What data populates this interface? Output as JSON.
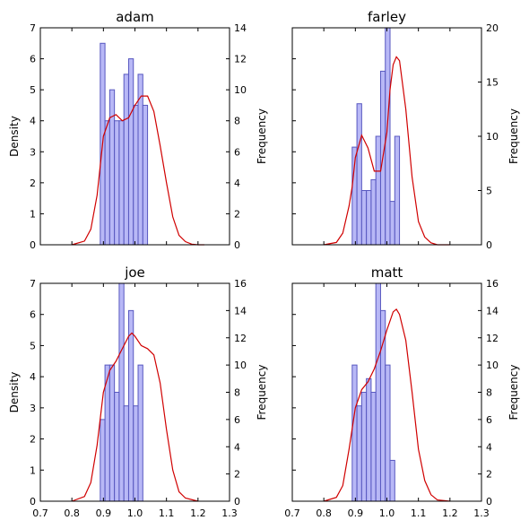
{
  "colors": {
    "bar_fill": "#b0b0f5",
    "bar_stroke": "#5858c0",
    "kde": "#d00000",
    "axis": "#000000"
  },
  "chart_data": [
    {
      "type": "bar",
      "title": "adam",
      "bin_start": 0.89,
      "bin_width": 0.015,
      "frequencies": [
        13,
        8,
        10,
        8,
        8,
        11,
        12,
        9,
        11,
        9
      ],
      "density_kde": {
        "x": [
          0.8,
          0.84,
          0.86,
          0.88,
          0.9,
          0.92,
          0.94,
          0.96,
          0.98,
          1.0,
          1.02,
          1.04,
          1.06,
          1.08,
          1.1,
          1.12,
          1.14,
          1.16,
          1.18,
          1.2,
          1.22
        ],
        "y": [
          0.0,
          0.12,
          0.5,
          1.6,
          3.5,
          4.1,
          4.2,
          4.0,
          4.1,
          4.5,
          4.8,
          4.8,
          4.3,
          3.2,
          2.0,
          0.9,
          0.3,
          0.1,
          0.02,
          0.0,
          0.0
        ]
      },
      "xlim": [
        0.7,
        1.3
      ],
      "ylim_left": [
        0,
        7
      ],
      "ylim_right": [
        0,
        14
      ],
      "left_ticks": [
        "0",
        "1",
        "2",
        "3",
        "4",
        "5",
        "6",
        "7"
      ],
      "right_ticks": [
        "0",
        "2",
        "4",
        "6",
        "8",
        "10",
        "12",
        "14"
      ],
      "ylabel_left": "Density",
      "ylabel_right": "Frequency",
      "x_tick_labels_visible": false
    },
    {
      "type": "bar",
      "title": "farley",
      "bin_start": 0.89,
      "bin_width": 0.015,
      "frequencies": [
        9,
        13,
        5,
        5,
        6,
        10,
        16,
        20,
        4,
        10
      ],
      "density_kde": {
        "x": [
          0.8,
          0.84,
          0.86,
          0.88,
          0.89,
          0.9,
          0.92,
          0.94,
          0.96,
          0.98,
          1.0,
          1.01,
          1.02,
          1.03,
          1.04,
          1.06,
          1.08,
          1.1,
          1.12,
          1.14,
          1.16,
          1.2
        ],
        "y": [
          0.0,
          0.12,
          0.6,
          2.0,
          3.0,
          4.5,
          5.65,
          5.0,
          3.8,
          3.8,
          5.8,
          8.0,
          9.3,
          9.7,
          9.5,
          7.0,
          3.5,
          1.2,
          0.4,
          0.1,
          0.0,
          0.0
        ]
      },
      "xlim": [
        0.7,
        1.3
      ],
      "ylim_left": [
        0,
        11.2
      ],
      "ylim_right": [
        0,
        20
      ],
      "left_ticks": [],
      "right_ticks": [
        "0",
        "5",
        "10",
        "15",
        "20"
      ],
      "ylabel_left": "",
      "ylabel_right": "Frequency",
      "x_tick_labels_visible": false
    },
    {
      "type": "bar",
      "title": "joe",
      "bin_start": 0.89,
      "bin_width": 0.015,
      "frequencies": [
        6,
        10,
        10,
        8,
        16,
        7,
        14,
        7,
        10
      ],
      "density_kde": {
        "x": [
          0.8,
          0.84,
          0.86,
          0.88,
          0.9,
          0.92,
          0.94,
          0.96,
          0.98,
          0.99,
          1.0,
          1.02,
          1.04,
          1.06,
          1.08,
          1.1,
          1.12,
          1.14,
          1.16,
          1.2
        ],
        "y": [
          0.0,
          0.15,
          0.6,
          1.8,
          3.5,
          4.2,
          4.5,
          4.9,
          5.3,
          5.4,
          5.3,
          5.0,
          4.9,
          4.7,
          3.8,
          2.3,
          1.0,
          0.3,
          0.1,
          0.0
        ]
      },
      "xlim": [
        0.7,
        1.3
      ],
      "ylim_left": [
        0,
        7
      ],
      "ylim_right": [
        0,
        16
      ],
      "left_ticks": [
        "0",
        "1",
        "2",
        "3",
        "4",
        "5",
        "6",
        "7"
      ],
      "right_ticks": [
        "0",
        "2",
        "4",
        "6",
        "8",
        "10",
        "12",
        "14",
        "16"
      ],
      "ylabel_left": "Density",
      "ylabel_right": "Frequency",
      "x_tick_labels_visible": true
    },
    {
      "type": "bar",
      "title": "matt",
      "bin_start": 0.89,
      "bin_width": 0.015,
      "frequencies": [
        10,
        7,
        8,
        9,
        8,
        16,
        14,
        10,
        3
      ],
      "density_kde": {
        "x": [
          0.8,
          0.84,
          0.86,
          0.88,
          0.9,
          0.92,
          0.94,
          0.96,
          0.98,
          1.0,
          1.02,
          1.03,
          1.04,
          1.06,
          1.08,
          1.1,
          1.12,
          1.14,
          1.16,
          1.2
        ],
        "y": [
          0.0,
          0.15,
          0.6,
          2.0,
          3.6,
          4.3,
          4.6,
          5.1,
          5.8,
          6.6,
          7.3,
          7.4,
          7.2,
          6.2,
          4.2,
          2.0,
          0.8,
          0.25,
          0.05,
          0.0
        ]
      },
      "xlim": [
        0.7,
        1.3
      ],
      "ylim_left": [
        0,
        8.4
      ],
      "ylim_right": [
        0,
        16
      ],
      "left_ticks": [],
      "right_ticks": [
        "0",
        "2",
        "4",
        "6",
        "8",
        "10",
        "12",
        "14",
        "16"
      ],
      "ylabel_left": "",
      "ylabel_right": "Frequency",
      "x_tick_labels_visible": true
    }
  ],
  "x_tick_labels": [
    "0.7",
    "0.8",
    "0.9",
    "1.0",
    "1.1",
    "1.2",
    "1.3"
  ]
}
